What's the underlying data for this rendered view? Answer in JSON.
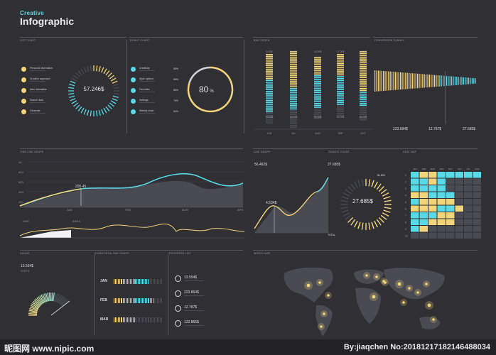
{
  "header": {
    "subtitle": "Creative",
    "title": "Infographic"
  },
  "sections": {
    "list_chart": "LIST CHART",
    "donut_chart": "DONUT CHART",
    "bar_graph": "BAR GRAPH",
    "conversion_funnel": "CONVERSION FUNNEL",
    "time_line_graph": "TIME LINE GRAPH",
    "line_graph": "LINE GRAPH",
    "donate_count": "DONATE COUNT",
    "heat_map": "HEAT MAP",
    "gauge": "GAUGE",
    "horizontal_bar": "HORIZONTAL BAR GRAPH",
    "progress_list": "PROGRESS LIST",
    "world_map": "WORLD MAP"
  },
  "list_chart": {
    "center_value": "57.246$",
    "items": [
      "Personal information",
      "Creative approach",
      "Idea rationalise",
      "Search data",
      "Generate"
    ]
  },
  "donut_chart": {
    "center_value": "80",
    "unit": "%",
    "items": [
      {
        "label": "Creativity",
        "value": "85%"
      },
      {
        "label": "Style options",
        "value": "85%"
      },
      {
        "label": "Favorites",
        "value": "85%"
      },
      {
        "label": "Settings",
        "value": "75%"
      },
      {
        "label": "Weekly chart",
        "value": "50%"
      }
    ]
  },
  "bar_graph": {
    "top_labels": [
      "5.00$",
      "10.00$",
      "15.00$",
      "17.00$",
      "19.00$"
    ],
    "bottom_labels": [
      "30.00$",
      "45.00$",
      "50.00$",
      "55.00$",
      "60.00$"
    ],
    "x_labels": [
      "JUN",
      "JUL",
      "AUG",
      "SEP",
      "OCT"
    ]
  },
  "conversion_funnel": {
    "values": [
      "223.684$",
      "12.787$",
      "27.685$"
    ]
  },
  "time_line": {
    "y_labels": [
      "1K",
      "800",
      "600",
      "400",
      "200",
      "0"
    ],
    "marker": "205.45",
    "x_labels": [
      "JAN",
      "FEB",
      "MAR",
      "APR"
    ],
    "legend": [
      "LINE",
      "AREA"
    ]
  },
  "line_graph": {
    "value_a": "56.482$",
    "value_b": "27.685$",
    "marker": "4.534$"
  },
  "donate_count": {
    "center_value": "27.685$",
    "legend": [
      "$1,800",
      "TOTAL"
    ]
  },
  "heat_map": {
    "col_labels": [
      "JAN",
      "FEB",
      "MAR",
      "APR",
      "MAY",
      "JUN",
      "JUL",
      "AUG"
    ],
    "row_labels": [
      "1",
      "2",
      "3",
      "4",
      "5",
      "6",
      "7",
      "8",
      "9",
      "10"
    ]
  },
  "gauge": {
    "value": "13.554$",
    "sub": "STATS"
  },
  "hbar": {
    "labels": [
      "JAN",
      "FEB",
      "MAR"
    ]
  },
  "progress_list": {
    "values": [
      "13.554$",
      "223.864$",
      "12.787$",
      "122.865$"
    ]
  },
  "footer": {
    "left": "昵图网 www.nipic.com",
    "right": "By:jiaqchen No:20181217182146488034"
  },
  "colors": {
    "yellow": "#f2d47a",
    "cyan": "#59d8e6",
    "bg": "#2f2f34",
    "grey": "#55555c"
  }
}
